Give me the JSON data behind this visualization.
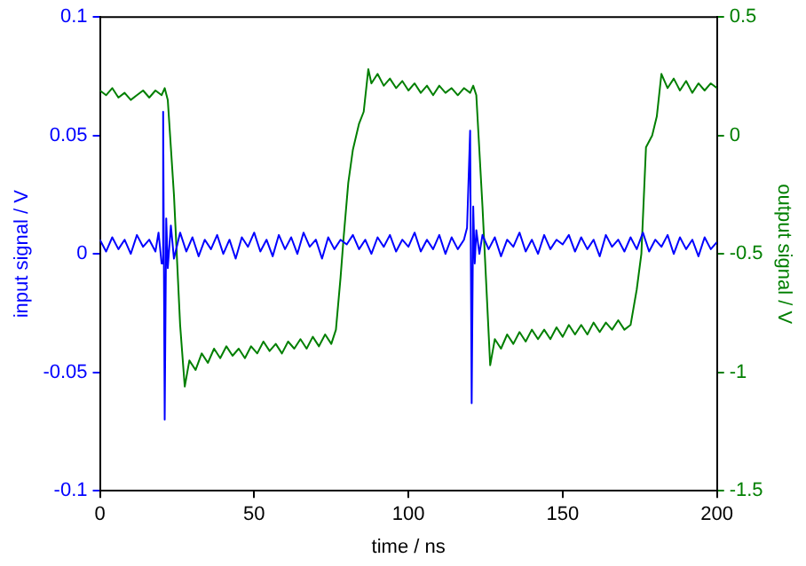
{
  "chart_data": {
    "type": "line",
    "xlabel": "time / ns",
    "ylabel": "input signal / V",
    "y2label": "output signal / V",
    "xlim": [
      0,
      200
    ],
    "xticks": [
      0,
      50,
      100,
      150,
      200
    ],
    "ylim": [
      -0.1,
      0.1
    ],
    "yticks": [
      -0.1,
      -0.05,
      0,
      0.05,
      0.1
    ],
    "y2lim": [
      -1.5,
      0.5
    ],
    "y2ticks": [
      -1.5,
      -1,
      -0.5,
      0,
      0.5
    ],
    "grid": false,
    "legend": false,
    "marker": "none",
    "line_style": "solid",
    "series": [
      {
        "color": "#0000ff",
        "axis": "y",
        "x": [
          0,
          2,
          4,
          6,
          8,
          10,
          12,
          14,
          16,
          18,
          19,
          20,
          20.5,
          21,
          21.5,
          22,
          23,
          24,
          26,
          28,
          30,
          32,
          34,
          36,
          38,
          40,
          42,
          44,
          46,
          48,
          50,
          52,
          54,
          56,
          58,
          60,
          62,
          64,
          66,
          68,
          70,
          72,
          74,
          76,
          78,
          80,
          82,
          84,
          86,
          88,
          90,
          92,
          94,
          96,
          98,
          100,
          102,
          104,
          106,
          108,
          110,
          112,
          114,
          116,
          118,
          119,
          120,
          120.5,
          121,
          121.5,
          122,
          123,
          124,
          126,
          128,
          130,
          132,
          134,
          136,
          138,
          140,
          142,
          144,
          146,
          148,
          150,
          152,
          154,
          156,
          158,
          160,
          162,
          164,
          166,
          168,
          170,
          172,
          174,
          176,
          178,
          180,
          182,
          184,
          186,
          188,
          190,
          192,
          194,
          196,
          198,
          200
        ],
        "values": [
          0.006,
          0.001,
          0.007,
          0.002,
          0.006,
          0.0,
          0.008,
          0.003,
          0.006,
          0.001,
          0.009,
          -0.004,
          0.06,
          -0.07,
          0.015,
          -0.006,
          0.012,
          -0.002,
          0.009,
          0.001,
          0.007,
          -0.001,
          0.006,
          0.002,
          0.008,
          0.0,
          0.006,
          -0.002,
          0.007,
          0.003,
          0.009,
          0.001,
          0.006,
          -0.001,
          0.008,
          0.002,
          0.007,
          0.0,
          0.009,
          0.003,
          0.006,
          -0.002,
          0.007,
          0.002,
          0.006,
          0.004,
          0.008,
          0.002,
          0.006,
          0.0,
          0.007,
          0.003,
          0.008,
          0.001,
          0.006,
          0.003,
          0.009,
          0.001,
          0.006,
          0.002,
          0.008,
          0.0,
          0.007,
          0.002,
          0.006,
          0.011,
          0.052,
          -0.063,
          0.02,
          -0.004,
          0.01,
          0.0,
          0.008,
          0.002,
          0.007,
          -0.001,
          0.006,
          0.003,
          0.009,
          0.001,
          0.006,
          0.0,
          0.008,
          0.002,
          0.006,
          0.004,
          0.008,
          0.001,
          0.007,
          0.002,
          0.006,
          -0.001,
          0.008,
          0.003,
          0.006,
          0.001,
          0.007,
          0.002,
          0.009,
          0.001,
          0.006,
          0.003,
          0.008,
          0.0,
          0.007,
          0.002,
          0.006,
          -0.001,
          0.007,
          0.002,
          0.005
        ]
      },
      {
        "color": "#007f00",
        "axis": "y2",
        "x": [
          0,
          2,
          4,
          6,
          8,
          10,
          12,
          14,
          16,
          18,
          20,
          21,
          22,
          24,
          26,
          27.5,
          29,
          31,
          33,
          35,
          37,
          39,
          41,
          43,
          45,
          47,
          49,
          51,
          53,
          55,
          57,
          59,
          61,
          63,
          65,
          67,
          69,
          71,
          73,
          75,
          76.5,
          78,
          79,
          80.5,
          82,
          84,
          85.5,
          87,
          88,
          90,
          92,
          94,
          96,
          98,
          100,
          102,
          104,
          106,
          108,
          110,
          112,
          114,
          116,
          118,
          120,
          121,
          122,
          124,
          126.5,
          128,
          130,
          132,
          134,
          136,
          138,
          140,
          142,
          144,
          146,
          148,
          150,
          152,
          154,
          156,
          158,
          160,
          162,
          164,
          166,
          168,
          170,
          172,
          174,
          175.5,
          177,
          179,
          180.5,
          182,
          184,
          186,
          188,
          190,
          192,
          194,
          196,
          198,
          200
        ],
        "values": [
          0.19,
          0.17,
          0.2,
          0.16,
          0.18,
          0.15,
          0.17,
          0.19,
          0.16,
          0.19,
          0.17,
          0.2,
          0.15,
          -0.25,
          -0.8,
          -1.06,
          -0.95,
          -0.99,
          -0.92,
          -0.96,
          -0.9,
          -0.94,
          -0.89,
          -0.93,
          -0.9,
          -0.94,
          -0.89,
          -0.92,
          -0.87,
          -0.91,
          -0.88,
          -0.92,
          -0.87,
          -0.9,
          -0.86,
          -0.9,
          -0.85,
          -0.89,
          -0.84,
          -0.88,
          -0.82,
          -0.6,
          -0.43,
          -0.2,
          -0.06,
          0.05,
          0.1,
          0.28,
          0.22,
          0.26,
          0.21,
          0.24,
          0.2,
          0.23,
          0.19,
          0.22,
          0.18,
          0.21,
          0.17,
          0.21,
          0.18,
          0.2,
          0.17,
          0.2,
          0.18,
          0.21,
          0.17,
          -0.3,
          -0.97,
          -0.86,
          -0.9,
          -0.84,
          -0.88,
          -0.83,
          -0.87,
          -0.82,
          -0.86,
          -0.82,
          -0.86,
          -0.81,
          -0.85,
          -0.8,
          -0.84,
          -0.8,
          -0.84,
          -0.79,
          -0.83,
          -0.79,
          -0.82,
          -0.78,
          -0.82,
          -0.8,
          -0.65,
          -0.5,
          -0.05,
          0.0,
          0.08,
          0.26,
          0.2,
          0.24,
          0.19,
          0.23,
          0.18,
          0.22,
          0.19,
          0.22,
          0.2
        ]
      }
    ]
  }
}
